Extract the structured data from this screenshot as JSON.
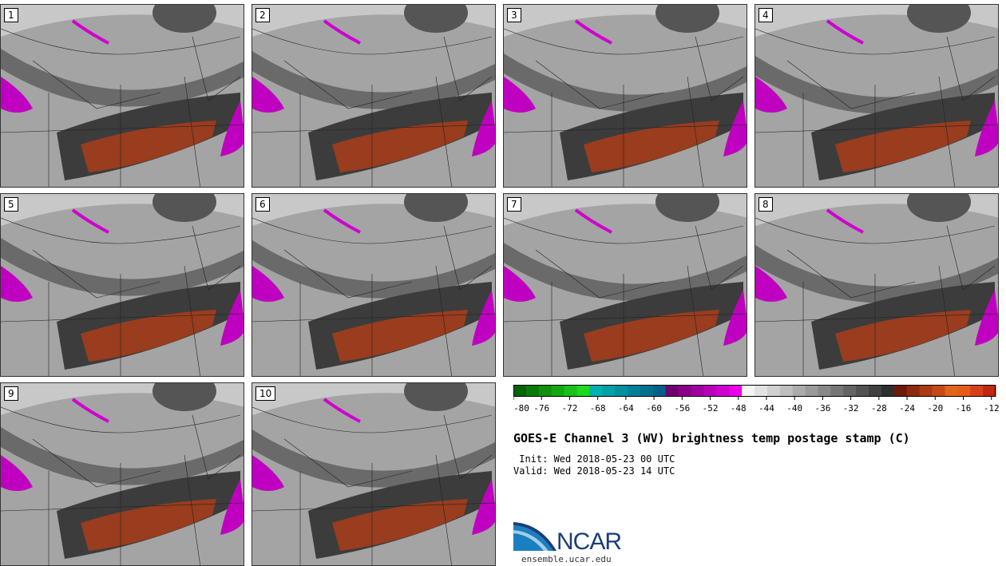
{
  "panels": [
    {
      "label": "1"
    },
    {
      "label": "2"
    },
    {
      "label": "3"
    },
    {
      "label": "4"
    },
    {
      "label": "5"
    },
    {
      "label": "6"
    },
    {
      "label": "7"
    },
    {
      "label": "8"
    },
    {
      "label": "9"
    },
    {
      "label": "10"
    }
  ],
  "colorbar": {
    "ticks": [
      "-80",
      "-76",
      "-72",
      "-68",
      "-64",
      "-60",
      "-56",
      "-52",
      "-48",
      "-44",
      "-40",
      "-36",
      "-32",
      "-28",
      "-24",
      "-20",
      "-16",
      "-12"
    ],
    "colors": [
      "#006400",
      "#0a7a0a",
      "#0f900f",
      "#12a812",
      "#18c018",
      "#1ed81e",
      "#00b0b0",
      "#00a0a8",
      "#0090a0",
      "#008098",
      "#007090",
      "#006088",
      "#700070",
      "#880088",
      "#a000a0",
      "#b800b8",
      "#d000d0",
      "#e800e8",
      "#f4f4f4",
      "#e2e2e2",
      "#d0d0d0",
      "#bebebe",
      "#acacac",
      "#9a9a9a",
      "#888888",
      "#767676",
      "#646464",
      "#525252",
      "#404040",
      "#2e2e2e",
      "#6b1a0a",
      "#8b2a10",
      "#a83a14",
      "#c44a18",
      "#e0661a",
      "#e85c1a",
      "#d8401a",
      "#c02810"
    ]
  },
  "title": "GOES-E Channel 3 (WV) brightness temp postage stamp (C)",
  "init": " Init: Wed 2018-05-23 00 UTC",
  "valid": "Valid: Wed 2018-05-23 14 UTC",
  "logo": {
    "text": "NCAR"
  },
  "url": "ensemble.ucar.edu"
}
